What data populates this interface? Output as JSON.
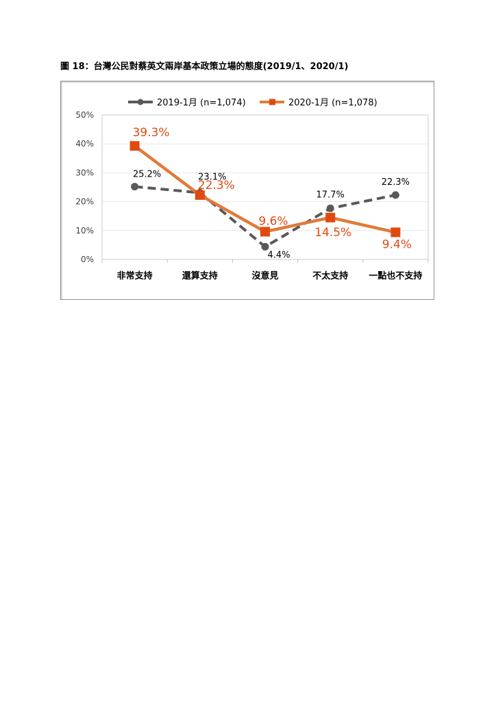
{
  "figure_title": "圖 18：台灣公民對蔡英文兩岸基本政策立場的態度(2019/1、2020/1)",
  "colors": {
    "series_2019": "#595959",
    "series_2020": "#e07b39",
    "marker_2020": "#e04a10",
    "label_2020": "#e04a10"
  },
  "chart_data": {
    "type": "line",
    "categories": [
      "非常支持",
      "還算支持",
      "沒意見",
      "不太支持",
      "一點也不支持"
    ],
    "ylim": [
      0,
      50
    ],
    "yticks": [
      "0%",
      "10%",
      "20%",
      "30%",
      "40%",
      "50%"
    ],
    "grid": true,
    "legend": "top",
    "series": [
      {
        "name": "2019-1月 (n=1,074)",
        "values": [
          25.2,
          23.1,
          4.4,
          17.7,
          22.3
        ],
        "labels": [
          "25.2%",
          "23.1%",
          "4.4%",
          "17.7%",
          "22.3%"
        ]
      },
      {
        "name": "2020-1月 (n=1,078)",
        "values": [
          39.3,
          22.3,
          9.6,
          14.5,
          9.4
        ],
        "labels": [
          "39.3%",
          "22.3%",
          "9.6%",
          "14.5%",
          "9.4%"
        ]
      }
    ]
  }
}
